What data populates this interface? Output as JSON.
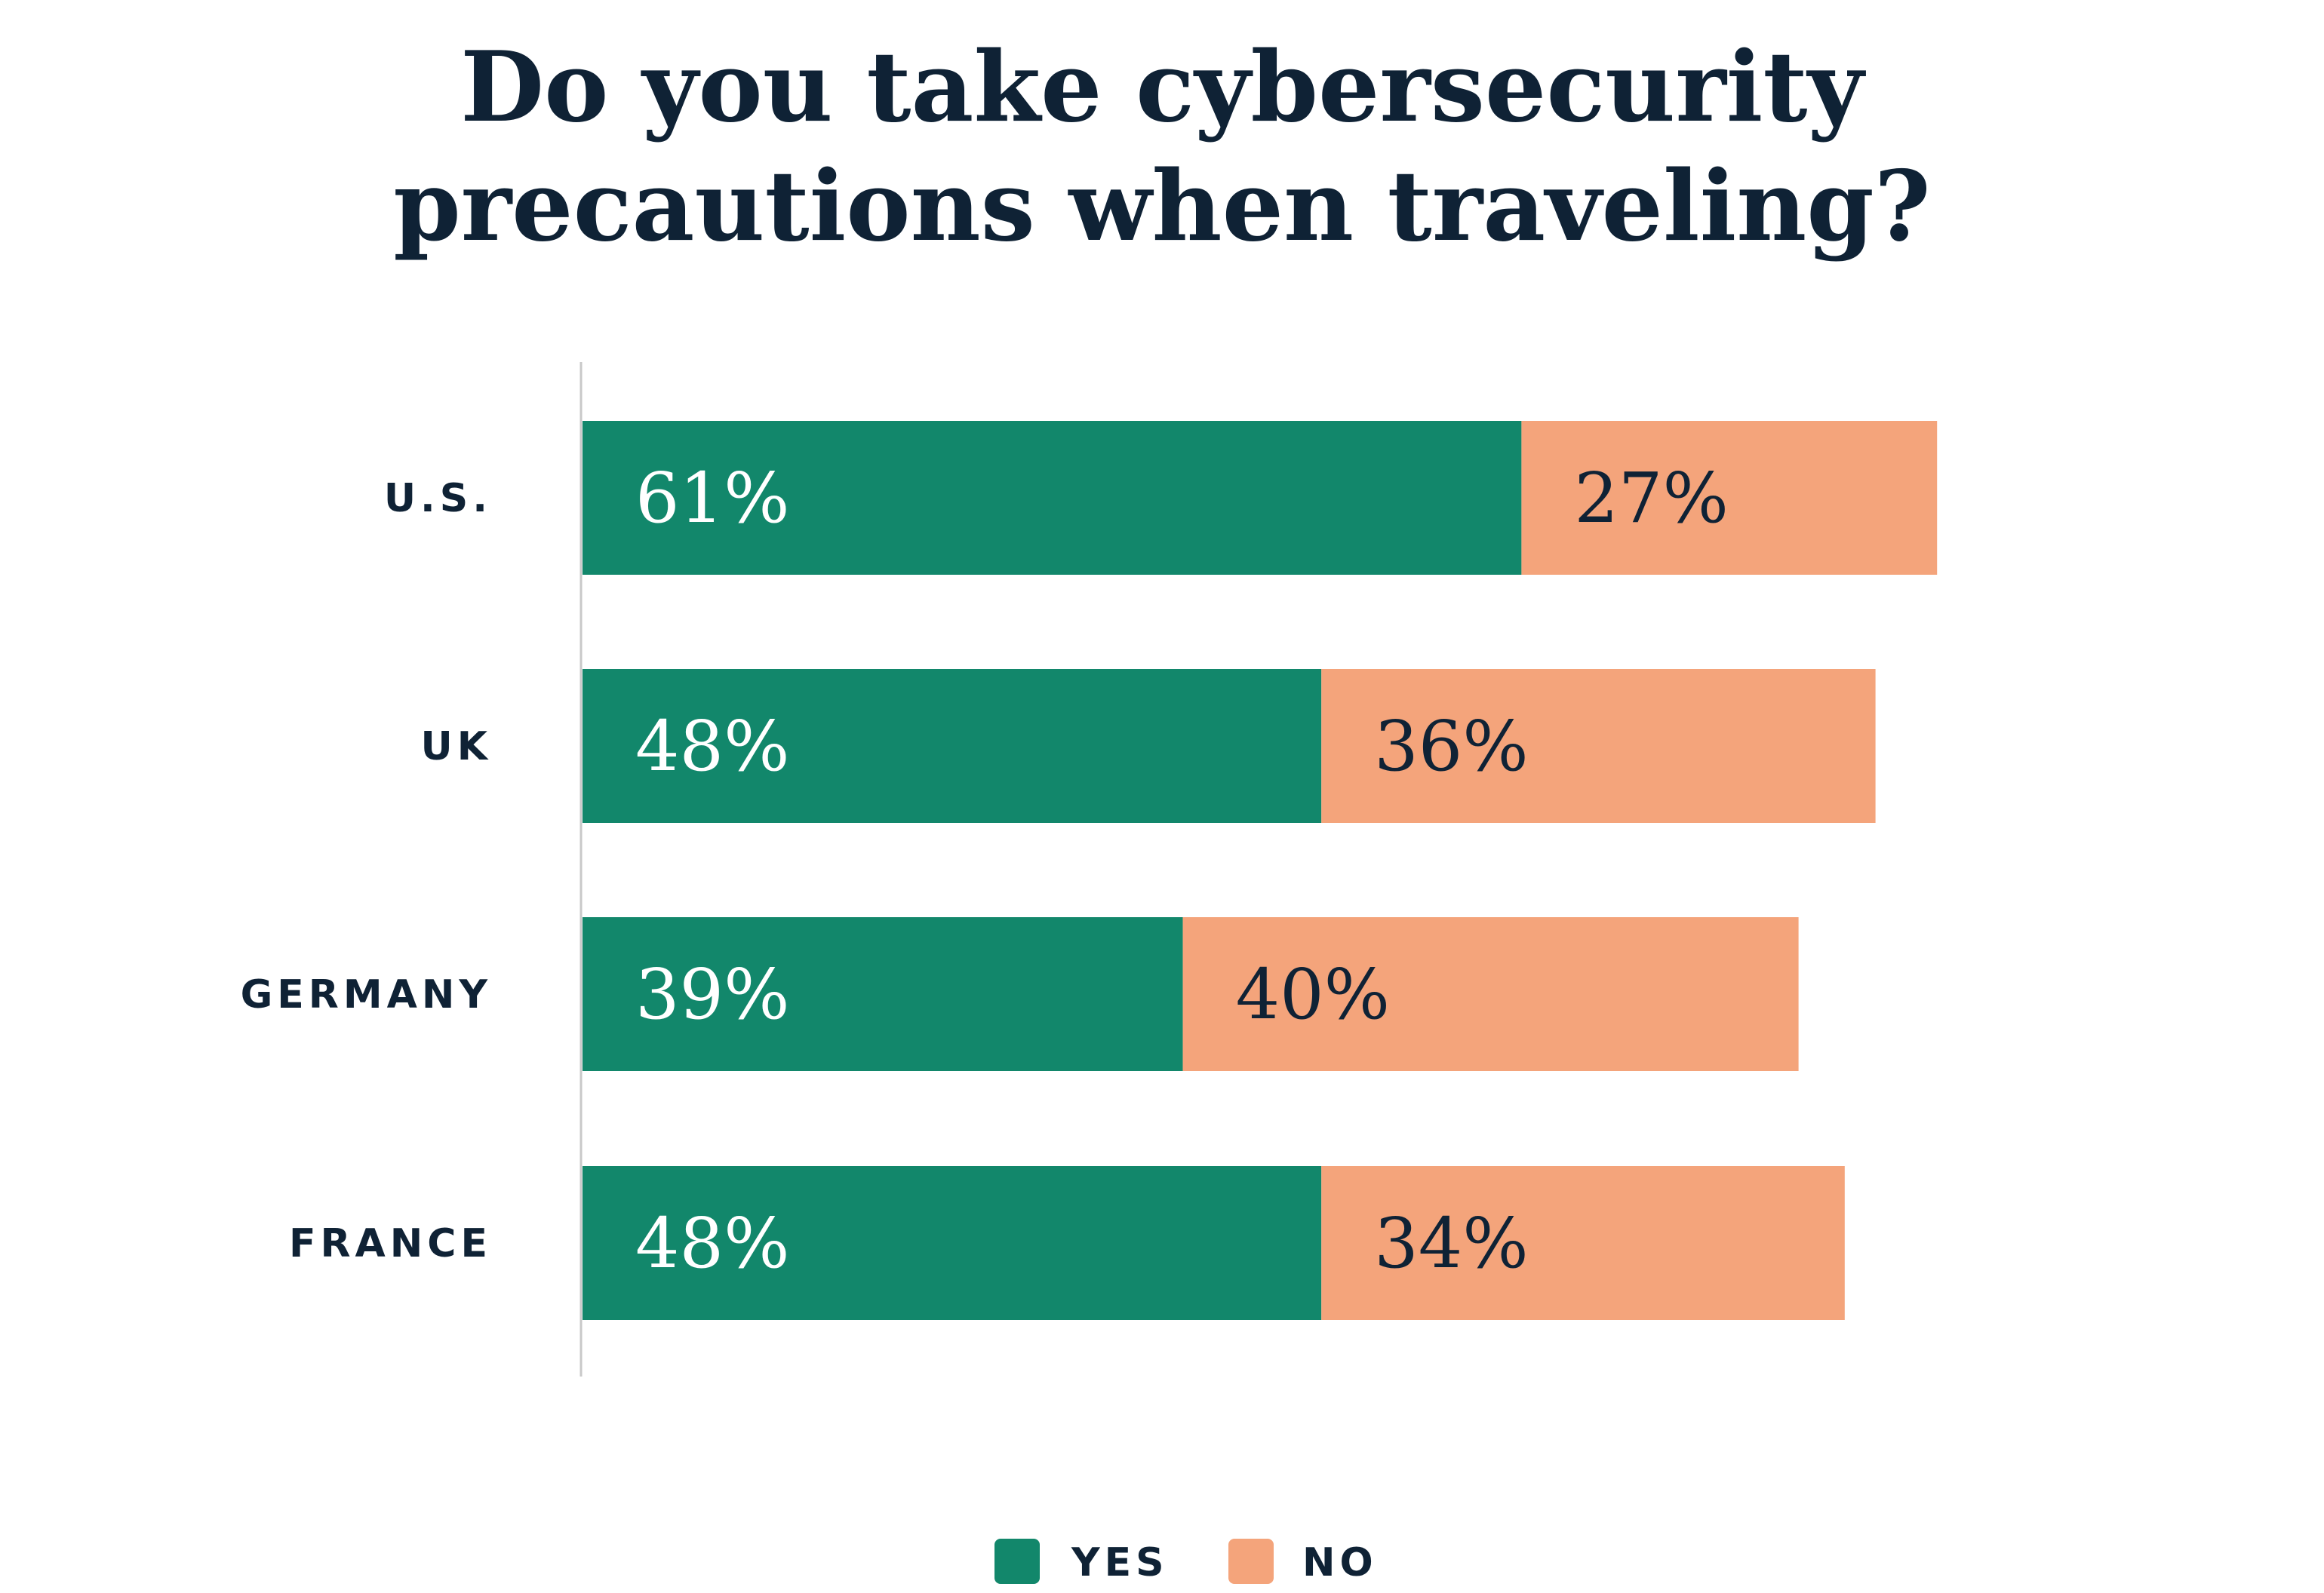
{
  "chart_data": {
    "type": "bar",
    "orientation": "horizontal",
    "stacked": true,
    "title_lines": [
      "Do you take cybersecurity",
      "precautions when traveling?"
    ],
    "categories": [
      "U.S.",
      "UK",
      "GERMANY",
      "FRANCE"
    ],
    "series": [
      {
        "name": "YES",
        "values": [
          61,
          48,
          39,
          48
        ],
        "color": "#12876b",
        "label_color": "#ffffff"
      },
      {
        "name": "NO",
        "values": [
          27,
          36,
          40,
          34
        ],
        "color": "#f4a47b",
        "label_color": "#0f2235"
      }
    ],
    "value_suffix": "%",
    "xlim": [
      0,
      100
    ],
    "grid": false,
    "legend_position": "bottom-center"
  },
  "colors": {
    "title": "#0f2235",
    "axis_line": "#c8c8c8"
  }
}
